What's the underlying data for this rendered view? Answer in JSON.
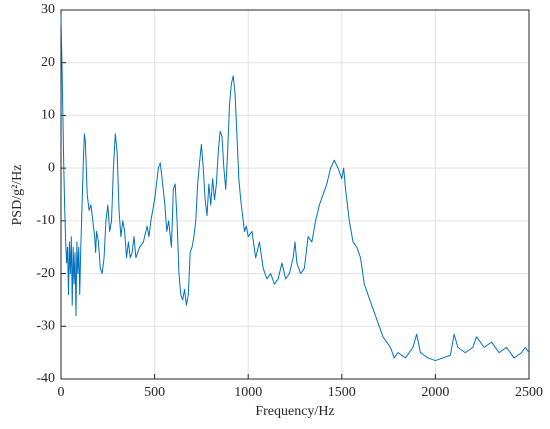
{
  "chart_data": {
    "type": "line",
    "xlabel": "Frequency/Hz",
    "ylabel": "PSD/g²/Hz",
    "xlim": [
      0,
      2500
    ],
    "xticks": [
      0,
      500,
      1000,
      1500,
      2000,
      2500
    ],
    "ylim": [
      -40,
      30
    ],
    "yticks": [
      -40,
      -30,
      -20,
      -10,
      0,
      10,
      20,
      30
    ],
    "grid": true,
    "series": [
      {
        "color": "#0072bd",
        "x": [
          0,
          5,
          10,
          15,
          20,
          25,
          30,
          35,
          40,
          45,
          50,
          55,
          60,
          65,
          70,
          75,
          80,
          85,
          90,
          95,
          100,
          105,
          110,
          120,
          125,
          130,
          140,
          150,
          160,
          170,
          180,
          185,
          190,
          200,
          210,
          220,
          230,
          240,
          250,
          260,
          270,
          280,
          290,
          300,
          310,
          320,
          330,
          340,
          350,
          360,
          370,
          380,
          390,
          400,
          420,
          440,
          460,
          470,
          480,
          500,
          520,
          530,
          540,
          555,
          565,
          575,
          590,
          600,
          610,
          620,
          630,
          640,
          650,
          660,
          670,
          680,
          690,
          700,
          710,
          720,
          730,
          740,
          750,
          760,
          770,
          780,
          790,
          800,
          810,
          820,
          830,
          840,
          850,
          860,
          870,
          880,
          890,
          900,
          910,
          920,
          930,
          940,
          950,
          960,
          970,
          980,
          990,
          1000,
          1020,
          1040,
          1060,
          1080,
          1100,
          1120,
          1140,
          1160,
          1180,
          1200,
          1220,
          1240,
          1250,
          1260,
          1280,
          1300,
          1320,
          1340,
          1360,
          1380,
          1400,
          1420,
          1440,
          1460,
          1480,
          1500,
          1510,
          1520,
          1540,
          1560,
          1580,
          1600,
          1620,
          1640,
          1660,
          1680,
          1700,
          1720,
          1740,
          1760,
          1780,
          1800,
          1840,
          1880,
          1900,
          1920,
          1960,
          2000,
          2040,
          2080,
          2100,
          2120,
          2160,
          2200,
          2220,
          2260,
          2300,
          2340,
          2380,
          2420,
          2460,
          2480,
          2500
        ],
        "values": [
          29,
          20,
          10,
          0,
          -8,
          -14,
          -18,
          -15,
          -24,
          -14,
          -20,
          -13,
          -26,
          -15,
          -22,
          -16,
          -28,
          -14,
          -20,
          -15,
          -24,
          -16,
          -10,
          2,
          6.5,
          5,
          -5,
          -8,
          -7,
          -10,
          -13,
          -16,
          -12,
          -14,
          -19,
          -20,
          -17,
          -10,
          -7,
          -12,
          -10,
          0,
          6.5,
          3,
          -8,
          -13,
          -10,
          -12,
          -17,
          -14,
          -17,
          -16,
          -13,
          -17,
          -15,
          -14,
          -11,
          -13,
          -10,
          -6,
          0,
          1,
          -2,
          -7,
          -12,
          -10,
          -15,
          -4,
          -3,
          -10,
          -20,
          -24,
          -25,
          -23,
          -26,
          -24,
          -16,
          -15,
          -13,
          -10,
          -3,
          1,
          4.5,
          0,
          -6,
          -9,
          -3,
          -7,
          -2,
          -6,
          -3,
          3,
          7,
          6,
          0,
          -4,
          3,
          12,
          16,
          17.5,
          14,
          6,
          -2,
          -6,
          -9,
          -12,
          -11,
          -13,
          -12,
          -17,
          -14,
          -19,
          -21,
          -20,
          -22,
          -21,
          -18,
          -21,
          -20,
          -17,
          -14,
          -18,
          -20,
          -19,
          -13,
          -14,
          -10,
          -7,
          -5,
          -3,
          0,
          1.5,
          0,
          -2,
          0,
          -4,
          -10,
          -14,
          -15,
          -17,
          -22,
          -24,
          -26,
          -28,
          -30,
          -32,
          -33,
          -34,
          -36,
          -35,
          -36,
          -34,
          -31.5,
          -35,
          -36,
          -36.5,
          -36,
          -35.5,
          -31.5,
          -34,
          -35,
          -34,
          -32,
          -34,
          -33,
          -35,
          -34,
          -36,
          -35,
          -34,
          -35
        ]
      }
    ]
  }
}
